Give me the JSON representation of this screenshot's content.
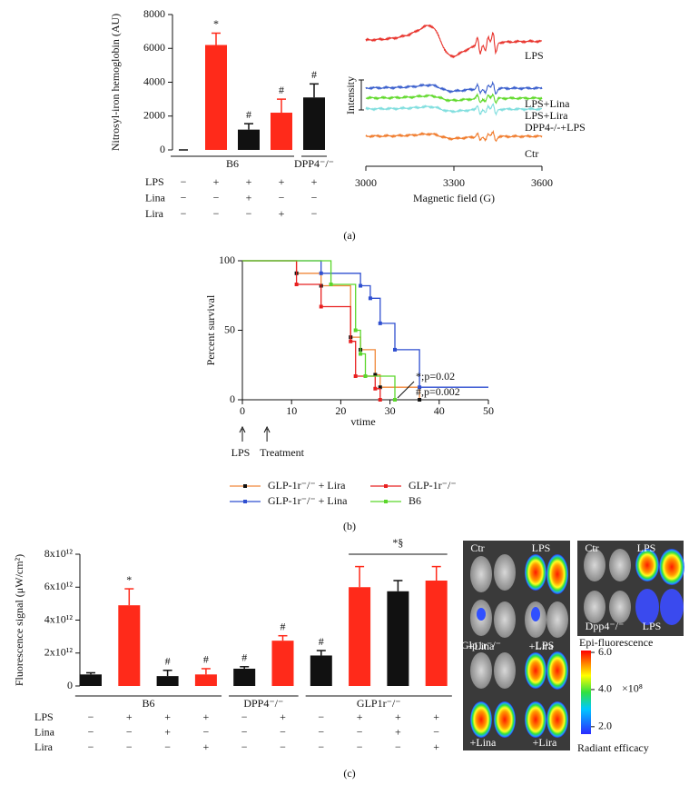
{
  "panel_labels": [
    "(a)",
    "(b)",
    "(c)"
  ],
  "chart_data": [
    {
      "type": "bar",
      "ylabel": "Nitrosyl-iron hemoglobin (AU)",
      "values": [
        0,
        6200,
        1200,
        2200,
        3100
      ],
      "errors": [
        0,
        700,
        350,
        800,
        800
      ],
      "colors": [
        "#111111",
        "#ff2a1a",
        "#111111",
        "#ff2a1a",
        "#111111"
      ],
      "annotations": [
        null,
        "*",
        "#",
        "#",
        "#"
      ],
      "ylim": [
        0,
        8000
      ],
      "yticks": [
        0,
        2000,
        4000,
        6000,
        8000
      ],
      "groups": [
        {
          "label": "B6",
          "span": 4
        },
        {
          "label": "DPP4⁻/⁻",
          "span": 1
        }
      ],
      "rows": [
        {
          "label": "LPS",
          "signs": [
            "−",
            "+",
            "+",
            "+",
            "+"
          ]
        },
        {
          "label": "Lina",
          "signs": [
            "−",
            "−",
            "+",
            "−",
            "−"
          ]
        },
        {
          "label": "Lira",
          "signs": [
            "−",
            "−",
            "−",
            "+",
            "−"
          ]
        }
      ]
    },
    {
      "type": "spectrum",
      "xlabel": "Magnetic field (G)",
      "ylabel": "Intensity",
      "xlim": [
        3000,
        3600
      ],
      "xticks": [
        3000,
        3300,
        3600
      ],
      "series": [
        {
          "name": "LPS",
          "color": "#e8312a"
        },
        {
          "name": "LPS+Lina",
          "color": "#3a5fcd"
        },
        {
          "name": "LPS+Lira",
          "color": "#5fd92a"
        },
        {
          "name": "DPP4-/-+LPS",
          "color": "#7fdede"
        },
        {
          "name": "Ctr",
          "color": "#f07a2a"
        }
      ]
    },
    {
      "type": "step",
      "xlabel": "vtime",
      "ylabel": "Percent survival",
      "xlim": [
        0,
        50
      ],
      "xticks": [
        0,
        10,
        20,
        30,
        40,
        50
      ],
      "ylim": [
        0,
        100
      ],
      "yticks": [
        0,
        50,
        100
      ],
      "series": [
        {
          "name": "GLP-1r⁻/⁻ + Lira",
          "color": "#f0883a",
          "marker_color": "#111111",
          "x": [
            0,
            11,
            16,
            22,
            24,
            27,
            28,
            36
          ],
          "values": [
            100,
            91,
            82,
            45,
            36,
            18,
            9,
            0
          ]
        },
        {
          "name": "GLP-1r⁻/⁻ + Lina",
          "color": "#2f4fd0",
          "marker_color": "#2f4fd0",
          "x": [
            0,
            16,
            24,
            26,
            28,
            31,
            36,
            50
          ],
          "values": [
            100,
            91,
            82,
            73,
            55,
            36,
            9,
            9
          ]
        },
        {
          "name": "GLP-1r⁻/⁻",
          "color": "#e82020",
          "marker_color": "#e82020",
          "x": [
            0,
            11,
            16,
            22,
            23,
            27,
            28
          ],
          "values": [
            100,
            83,
            67,
            42,
            17,
            8,
            0
          ]
        },
        {
          "name": "B6",
          "color": "#5ad62a",
          "marker_color": "#5ad62a",
          "x": [
            0,
            18,
            23,
            24,
            25,
            31
          ],
          "values": [
            100,
            83,
            50,
            33,
            17,
            0
          ]
        }
      ],
      "annotations": [
        "*;p=0.02",
        "#,p=0.002"
      ],
      "events": [
        {
          "x": 0,
          "label": "LPS"
        },
        {
          "x": 5,
          "label": "Treatment"
        }
      ]
    },
    {
      "type": "bar",
      "ylabel": "Fluorescence signal (μW/cm²)",
      "values": [
        700000000000,
        4900000000000,
        600000000000,
        700000000000,
        1050000000000,
        2750000000000,
        1850000000000,
        6000000000000,
        5750000000000,
        6400000000000
      ],
      "errors": [
        100000000000,
        1000000000000,
        350000000000,
        350000000000,
        120000000000,
        300000000000,
        300000000000,
        1250000000000,
        650000000000,
        850000000000
      ],
      "colors": [
        "#111111",
        "#ff2a1a",
        "#111111",
        "#ff2a1a",
        "#111111",
        "#ff2a1a",
        "#111111",
        "#ff2a1a",
        "#111111",
        "#ff2a1a"
      ],
      "annotations": [
        null,
        "*",
        "#",
        "#",
        "#",
        "#",
        "#",
        null,
        null,
        null
      ],
      "bracket_label": "*§",
      "ylim": [
        0,
        8000000000000
      ],
      "yticks": [
        0,
        {
          "value": 2000000000000,
          "label": "2x10¹²"
        },
        {
          "value": 4000000000000,
          "label": "4x10¹²"
        },
        {
          "value": 6000000000000,
          "label": "6x10¹²"
        },
        {
          "value": 8000000000000,
          "label": "8x10¹²"
        }
      ],
      "groups": [
        {
          "label": "B6",
          "span": 4
        },
        {
          "label": "DPP4⁻/⁻",
          "span": 2
        },
        {
          "label": "GLP1r⁻/⁻",
          "span": 4
        }
      ],
      "rows": [
        {
          "label": "LPS",
          "signs": [
            "−",
            "+",
            "+",
            "+",
            "−",
            "+",
            "−",
            "+",
            "+",
            "+"
          ]
        },
        {
          "label": "Lina",
          "signs": [
            "−",
            "−",
            "+",
            "−",
            "−",
            "−",
            "−",
            "−",
            "+",
            "−"
          ]
        },
        {
          "label": "Lira",
          "signs": [
            "−",
            "−",
            "−",
            "+",
            "−",
            "−",
            "−",
            "−",
            "−",
            "+"
          ]
        }
      ]
    }
  ],
  "images": [
    {
      "labels": [
        "Ctr",
        "LPS",
        "+Lina",
        "+Lira"
      ]
    },
    {
      "labels": [
        "Ctr",
        "LPS",
        "Dpp4⁻/⁻",
        "LPS"
      ]
    },
    {
      "labels": [
        "Glp1r⁻/⁻",
        "LPS",
        "+Lina",
        "+Lira"
      ]
    }
  ],
  "colorbar": {
    "title": "Epi-fluorescence",
    "lim": [
      1.6,
      6.1
    ],
    "ticks": [
      {
        "value": 6,
        "label": "6.0"
      },
      {
        "value": 4,
        "label": "4.0"
      },
      {
        "value": 2,
        "label": "2.0"
      }
    ],
    "multiplier": "×10⁸",
    "label": "Radiant efficacy"
  }
}
